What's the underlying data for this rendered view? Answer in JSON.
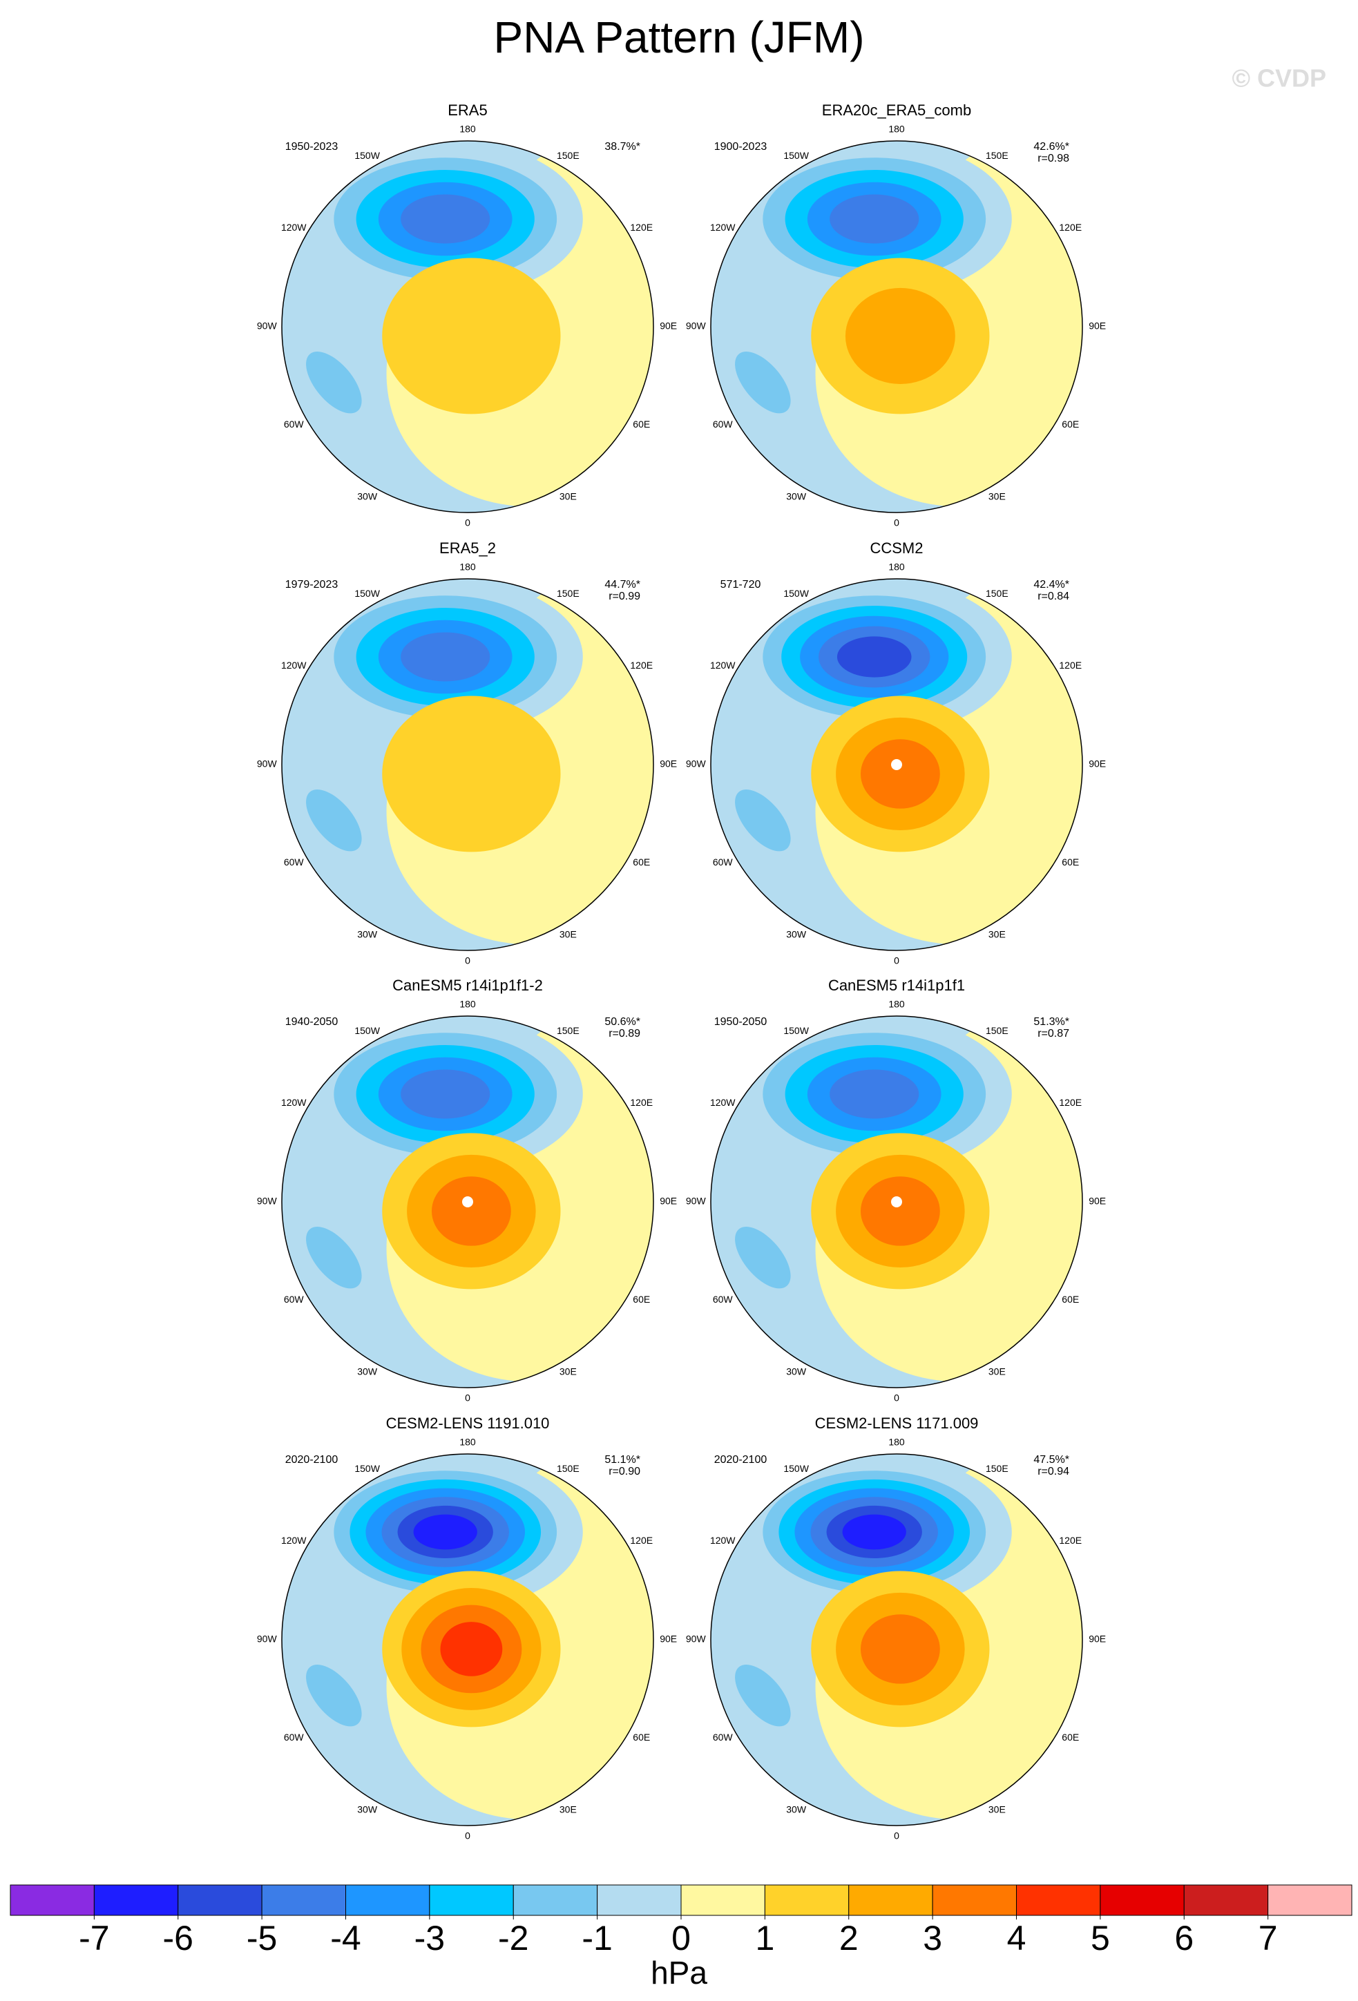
{
  "title": "PNA Pattern (JFM)",
  "watermark": "© CVDP",
  "lon_labels": [
    "180",
    "150E",
    "120E",
    "90E",
    "60E",
    "30E",
    "0",
    "30W",
    "60W",
    "90W",
    "120W",
    "150W"
  ],
  "panels": [
    {
      "title": "ERA5",
      "period": "1950-2023",
      "explained": "38.7%*"
    },
    {
      "title": "ERA20c_ERA5_comb",
      "period": "1900-2023",
      "explained": "42.6%*",
      "corr": "r=0.98"
    },
    {
      "title": "ERA5_2",
      "period": "1979-2023",
      "explained": "44.7%*",
      "corr": "r=0.99"
    },
    {
      "title": "CCSM2",
      "period": "571-720",
      "explained": "42.4%*",
      "corr": "r=0.84"
    },
    {
      "title": "CanESM5 r14i1p1f1-2",
      "period": "1940-2050",
      "explained": "50.6%*",
      "corr": "r=0.89"
    },
    {
      "title": "CanESM5 r14i1p1f1",
      "period": "1950-2050",
      "explained": "51.3%*",
      "corr": "r=0.87"
    },
    {
      "title": "CESM2-LENS 1191.010",
      "period": "2020-2100",
      "explained": "51.1%*",
      "corr": "r=0.90"
    },
    {
      "title": "CESM2-LENS 1171.009",
      "period": "2020-2100",
      "explained": "47.5%*",
      "corr": "r=0.94"
    }
  ],
  "colorbar": {
    "label": "hPa",
    "ticks": [
      -7,
      -6,
      -5,
      -4,
      -3,
      -2,
      -1,
      0,
      1,
      2,
      3,
      4,
      5,
      6,
      7
    ],
    "colors": [
      "#8a2be2",
      "#1e1eff",
      "#2a4bdc",
      "#3c7de8",
      "#1e96ff",
      "#00c8ff",
      "#78c8f0",
      "#b4dcf0",
      "#fff8a0",
      "#ffd22a",
      "#ffaa00",
      "#ff7800",
      "#ff3200",
      "#e60000",
      "#cc1e1e",
      "#ffb4b4"
    ]
  }
}
